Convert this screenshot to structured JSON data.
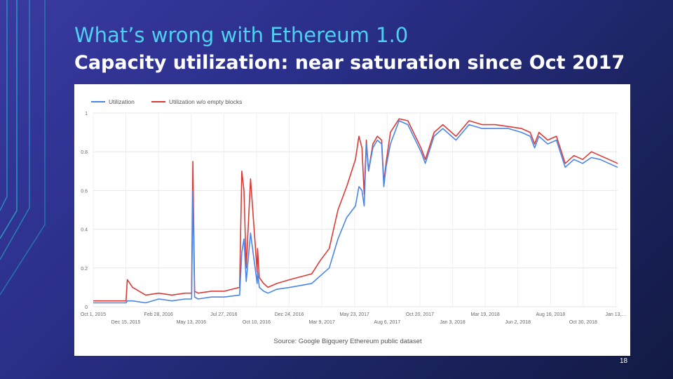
{
  "slide": {
    "title": "What’s wrong with Ethereum 1.0",
    "subtitle": "Capacity utilization: near saturation since Oct 2017",
    "page_number": "18"
  },
  "colors": {
    "accent_title": "#4fd0f0",
    "utilization": "#4a86e8",
    "utilization_no_empty": "#db3b36",
    "deco_line": "#22b3c9"
  },
  "chart_data": {
    "type": "line",
    "title": "",
    "xlabel": "",
    "ylabel": "",
    "ylim": [
      0,
      1
    ],
    "yticks": [
      "0",
      "0.2",
      "0.4",
      "0.6",
      "0.8",
      "1"
    ],
    "ytick_values": [
      0,
      0.2,
      0.4,
      0.6,
      0.8,
      1
    ],
    "xticks_top": [
      "Oct 1, 2015",
      "Feb 28, 2016",
      "Jul 27, 2016",
      "Dec 24, 2016",
      "May 23, 2017",
      "Oct 20, 2017",
      "Mar 19, 2018",
      "Aug 16, 2018",
      "Jan 13,…"
    ],
    "xticks_bottom": [
      "Dec 15, 2015",
      "May 13, 2016",
      "Oct 10, 2016",
      "Mar 9, 2017",
      "Aug 6, 2017",
      "Jan 3, 2018",
      "Jun 2, 2018",
      "Oct 30, 2018"
    ],
    "xlim_days": [
      0,
      1200
    ],
    "source": "Source: Google Bigquery Ethereum public dataset",
    "legend_position": "top-left",
    "series": [
      {
        "name": "Utilization",
        "days": [
          0,
          30,
          60,
          75,
          78,
          90,
          120,
          150,
          180,
          210,
          225,
          228,
          232,
          240,
          270,
          300,
          335,
          340,
          345,
          350,
          360,
          375,
          376,
          380,
          390,
          400,
          420,
          450,
          500,
          520,
          540,
          560,
          580,
          600,
          608,
          615,
          620,
          625,
          630,
          640,
          650,
          660,
          665,
          670,
          680,
          700,
          720,
          750,
          760,
          780,
          800,
          830,
          860,
          890,
          920,
          950,
          980,
          1000,
          1010,
          1020,
          1040,
          1060,
          1080,
          1100,
          1120,
          1140,
          1160,
          1180,
          1200
        ],
        "values": [
          0.02,
          0.02,
          0.02,
          0.02,
          0.03,
          0.03,
          0.02,
          0.04,
          0.03,
          0.04,
          0.04,
          0.6,
          0.05,
          0.04,
          0.05,
          0.05,
          0.06,
          0.28,
          0.35,
          0.13,
          0.38,
          0.12,
          0.18,
          0.1,
          0.08,
          0.07,
          0.09,
          0.1,
          0.12,
          0.16,
          0.2,
          0.35,
          0.46,
          0.52,
          0.62,
          0.6,
          0.52,
          0.84,
          0.7,
          0.82,
          0.86,
          0.84,
          0.62,
          0.72,
          0.84,
          0.96,
          0.94,
          0.8,
          0.74,
          0.88,
          0.92,
          0.86,
          0.94,
          0.92,
          0.92,
          0.92,
          0.9,
          0.88,
          0.82,
          0.88,
          0.84,
          0.86,
          0.72,
          0.76,
          0.74,
          0.77,
          0.76,
          0.74,
          0.72
        ]
      },
      {
        "name": "Utilization w/o empty blocks",
        "days": [
          0,
          30,
          60,
          75,
          78,
          90,
          120,
          150,
          180,
          210,
          225,
          228,
          232,
          240,
          270,
          300,
          335,
          340,
          345,
          350,
          360,
          375,
          376,
          380,
          390,
          400,
          420,
          450,
          500,
          520,
          540,
          560,
          580,
          600,
          608,
          615,
          620,
          625,
          630,
          640,
          650,
          660,
          665,
          670,
          680,
          700,
          720,
          750,
          760,
          780,
          800,
          830,
          860,
          890,
          920,
          950,
          980,
          1000,
          1010,
          1020,
          1040,
          1060,
          1080,
          1100,
          1120,
          1140,
          1160,
          1180,
          1200
        ],
        "values": [
          0.03,
          0.03,
          0.03,
          0.03,
          0.14,
          0.1,
          0.06,
          0.07,
          0.06,
          0.07,
          0.07,
          0.75,
          0.08,
          0.07,
          0.08,
          0.08,
          0.1,
          0.7,
          0.6,
          0.2,
          0.66,
          0.18,
          0.3,
          0.15,
          0.12,
          0.1,
          0.12,
          0.14,
          0.17,
          0.24,
          0.3,
          0.5,
          0.62,
          0.76,
          0.88,
          0.82,
          0.58,
          0.86,
          0.7,
          0.84,
          0.88,
          0.86,
          0.64,
          0.74,
          0.9,
          0.97,
          0.96,
          0.82,
          0.76,
          0.9,
          0.94,
          0.88,
          0.96,
          0.94,
          0.94,
          0.93,
          0.92,
          0.9,
          0.84,
          0.9,
          0.86,
          0.88,
          0.74,
          0.78,
          0.76,
          0.8,
          0.78,
          0.76,
          0.74
        ]
      }
    ]
  }
}
